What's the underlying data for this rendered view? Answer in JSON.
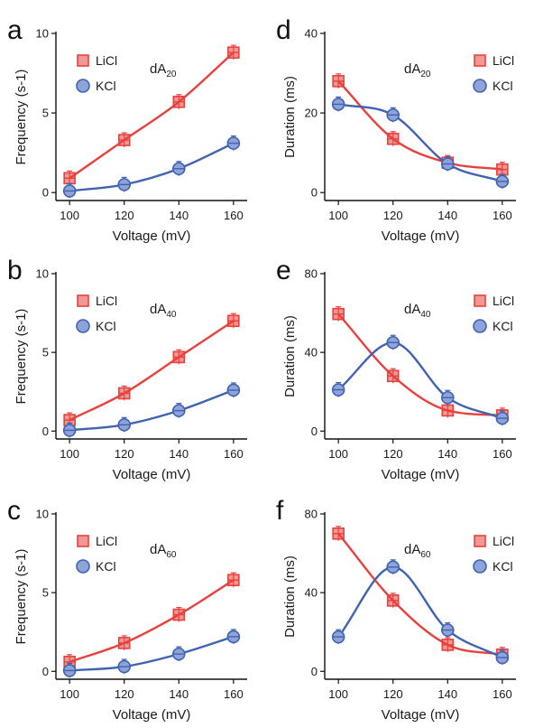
{
  "chart_data": [
    {
      "type": "line",
      "panel_label": "a",
      "annotation": {
        "base": "dA",
        "sub": "20"
      },
      "xlabel": "Voltage (mV)",
      "ylabel": "Frequency (s-1)",
      "xlim": [
        95,
        165
      ],
      "ylim": [
        -0.5,
        10
      ],
      "xticks": [
        100,
        120,
        140,
        160
      ],
      "yticks": [
        0,
        5,
        10
      ],
      "legend_placement": "top-left",
      "x": [
        100,
        120,
        140,
        160
      ],
      "series": [
        {
          "name": "LiCl",
          "color": "#e8413d",
          "marker": "square",
          "values": [
            0.9,
            3.3,
            5.7,
            8.8
          ]
        },
        {
          "name": "KCl",
          "color": "#3f63b2",
          "marker": "circle",
          "values": [
            0.1,
            0.5,
            1.5,
            3.1
          ]
        }
      ]
    },
    {
      "type": "line",
      "panel_label": "b",
      "annotation": {
        "base": "dA",
        "sub": "40"
      },
      "xlabel": "Voltage (mV)",
      "ylabel": "Frequency (s-1)",
      "xlim": [
        95,
        165
      ],
      "ylim": [
        -0.5,
        10
      ],
      "xticks": [
        100,
        120,
        140,
        160
      ],
      "yticks": [
        0,
        5,
        10
      ],
      "legend_placement": "top-left",
      "x": [
        100,
        120,
        140,
        160
      ],
      "series": [
        {
          "name": "LiCl",
          "color": "#e8413d",
          "marker": "square",
          "values": [
            0.7,
            2.4,
            4.7,
            7.0
          ]
        },
        {
          "name": "KCl",
          "color": "#3f63b2",
          "marker": "circle",
          "values": [
            0.05,
            0.4,
            1.3,
            2.6
          ]
        }
      ]
    },
    {
      "type": "line",
      "panel_label": "c",
      "annotation": {
        "base": "dA",
        "sub": "60"
      },
      "xlabel": "Voltage (mV)",
      "ylabel": "Frequency (s-1)",
      "xlim": [
        95,
        165
      ],
      "ylim": [
        -0.5,
        10
      ],
      "xticks": [
        100,
        120,
        140,
        160
      ],
      "yticks": [
        0,
        5,
        10
      ],
      "legend_placement": "top-left",
      "x": [
        100,
        120,
        140,
        160
      ],
      "series": [
        {
          "name": "LiCl",
          "color": "#e8413d",
          "marker": "square",
          "values": [
            0.6,
            1.8,
            3.6,
            5.8
          ]
        },
        {
          "name": "KCl",
          "color": "#3f63b2",
          "marker": "circle",
          "values": [
            0.05,
            0.3,
            1.1,
            2.2
          ]
        }
      ]
    },
    {
      "type": "line",
      "panel_label": "d",
      "annotation": {
        "base": "dA",
        "sub": "20"
      },
      "xlabel": "Voltage (mV)",
      "ylabel": "Duration (ms)",
      "xlim": [
        95,
        165
      ],
      "ylim": [
        -2,
        40
      ],
      "xticks": [
        100,
        120,
        140,
        160
      ],
      "yticks": [
        0,
        20,
        40
      ],
      "legend_placement": "top-right",
      "x": [
        100,
        120,
        140,
        160
      ],
      "series": [
        {
          "name": "LiCl",
          "color": "#e8413d",
          "marker": "square",
          "values": [
            28.0,
            13.5,
            7.5,
            5.8
          ]
        },
        {
          "name": "KCl",
          "color": "#3f63b2",
          "marker": "circle",
          "values": [
            22.2,
            19.5,
            7.2,
            2.8
          ]
        }
      ]
    },
    {
      "type": "line",
      "panel_label": "e",
      "annotation": {
        "base": "dA",
        "sub": "40"
      },
      "xlabel": "Voltage (mV)",
      "ylabel": "Duration (ms)",
      "xlim": [
        95,
        165
      ],
      "ylim": [
        -4,
        80
      ],
      "xticks": [
        100,
        120,
        140,
        160
      ],
      "yticks": [
        0,
        40,
        80
      ],
      "legend_placement": "top-right",
      "x": [
        100,
        120,
        140,
        160
      ],
      "series": [
        {
          "name": "LiCl",
          "color": "#e8413d",
          "marker": "square",
          "values": [
            59.5,
            28.0,
            10.5,
            8.0
          ]
        },
        {
          "name": "KCl",
          "color": "#3f63b2",
          "marker": "circle",
          "values": [
            21.0,
            45.0,
            17.0,
            6.5
          ]
        }
      ]
    },
    {
      "type": "line",
      "panel_label": "f",
      "annotation": {
        "base": "dA",
        "sub": "60"
      },
      "xlabel": "Voltage (mV)",
      "ylabel": "Duration (ms)",
      "xlim": [
        95,
        165
      ],
      "ylim": [
        -4,
        80
      ],
      "xticks": [
        100,
        120,
        140,
        160
      ],
      "yticks": [
        0,
        40,
        80
      ],
      "legend_placement": "top-right",
      "x": [
        100,
        120,
        140,
        160
      ],
      "series": [
        {
          "name": "LiCl",
          "color": "#e8413d",
          "marker": "square",
          "values": [
            70.0,
            36.0,
            13.5,
            8.5
          ]
        },
        {
          "name": "KCl",
          "color": "#3f63b2",
          "marker": "circle",
          "values": [
            17.5,
            53.0,
            21.0,
            7.0
          ]
        }
      ]
    }
  ]
}
